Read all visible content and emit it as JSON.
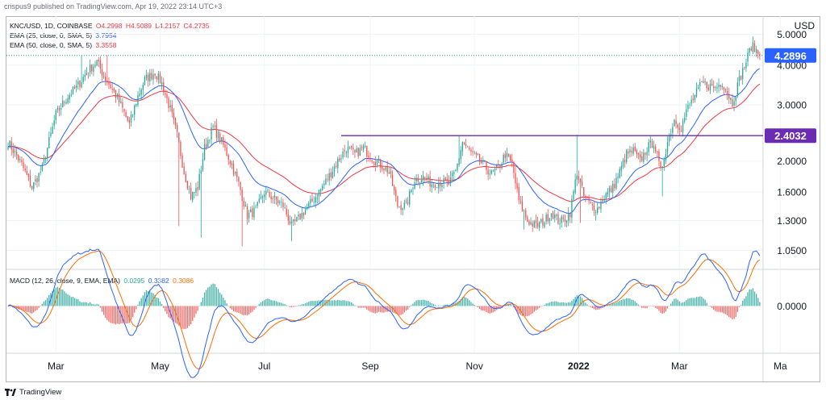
{
  "header": {
    "text": "crispus9 published on TradingView.com, Apr 19, 2022 23:14 UTC+3"
  },
  "legend": {
    "symbol_line": {
      "label": "KNC/USD, 1D, COINBASE",
      "open": "O4.2998",
      "high": "H4.5089",
      "low": "L4.2157",
      "close": "C4.2735"
    },
    "ema25": {
      "label": "EMA (25, close, 0, SMA, 5)",
      "value": "3.7954",
      "color": "#2962ff"
    },
    "ema50": {
      "label": "EMA (50, close, 0, SMA, 5)",
      "value": "3.3558",
      "color": "#f23645"
    },
    "macd": {
      "label": "MACD (12, 26, close, 9, EMA, EMA)",
      "hist": "0.0295",
      "macd": "0.3382",
      "signal": "0.3086",
      "hist_color": "#26a69a",
      "macd_color": "#2962ff",
      "signal_color": "#ff6d00"
    }
  },
  "footer": {
    "brand": "TradingView"
  },
  "colors": {
    "up": "#26a69a",
    "down": "#ef5350",
    "purple": "#6c2bb3",
    "current_label": "#2962ff",
    "level_label": "#6c2bb3"
  },
  "chart_data": {
    "type": "candlestick",
    "symbol": "KNC/USD",
    "interval": "1D",
    "exchange": "COINBASE",
    "y_axis": {
      "currency": "USD",
      "scale": "log",
      "ticks": [
        {
          "v": 5.0,
          "label": "5.0000"
        },
        {
          "v": 4.0,
          "label": "4.0000"
        },
        {
          "v": 3.0,
          "label": "3.0000"
        },
        {
          "v": 2.0,
          "label": "2.0000"
        },
        {
          "v": 1.6,
          "label": "1.6000"
        },
        {
          "v": 1.3,
          "label": "1.3000"
        },
        {
          "v": 1.05,
          "label": "1.0500"
        }
      ],
      "range": [
        0.92,
        5.7
      ]
    },
    "macd_axis": {
      "ticks": [
        {
          "v": 0.0,
          "label": "0.0000"
        }
      ],
      "range": [
        -0.58,
        0.44
      ]
    },
    "x_axis": {
      "ticks": [
        {
          "idx": 28,
          "label": "Mar"
        },
        {
          "idx": 89,
          "label": "May"
        },
        {
          "idx": 150,
          "label": "Jul"
        },
        {
          "idx": 212,
          "label": "Sep"
        },
        {
          "idx": 273,
          "label": "Nov"
        },
        {
          "idx": 334,
          "label": "2022",
          "bold": true
        },
        {
          "idx": 393,
          "label": "Mar"
        },
        {
          "idx": 452,
          "label": "Ma"
        }
      ]
    },
    "current_price": {
      "value": 4.2896,
      "label": "4.2896"
    },
    "horizontal_level": {
      "value": 2.4032,
      "label": "2.4032",
      "start_idx": 195
    },
    "anchors": [
      [
        0,
        2.3
      ],
      [
        8,
        1.95
      ],
      [
        14,
        1.65
      ],
      [
        20,
        1.9
      ],
      [
        28,
        2.8
      ],
      [
        35,
        3.2
      ],
      [
        40,
        3.4
      ],
      [
        46,
        3.8
      ],
      [
        52,
        4.1
      ],
      [
        56,
        3.7
      ],
      [
        62,
        3.3
      ],
      [
        66,
        3.0
      ],
      [
        71,
        2.6
      ],
      [
        76,
        3.2
      ],
      [
        80,
        3.6
      ],
      [
        86,
        3.8
      ],
      [
        90,
        3.5
      ],
      [
        95,
        2.9
      ],
      [
        99,
        2.4
      ],
      [
        103,
        1.85
      ],
      [
        107,
        1.55
      ],
      [
        111,
        1.65
      ],
      [
        115,
        2.2
      ],
      [
        120,
        2.55
      ],
      [
        125,
        2.3
      ],
      [
        130,
        2.0
      ],
      [
        135,
        1.7
      ],
      [
        140,
        1.35
      ],
      [
        145,
        1.4
      ],
      [
        150,
        1.6
      ],
      [
        156,
        1.52
      ],
      [
        161,
        1.45
      ],
      [
        166,
        1.25
      ],
      [
        170,
        1.32
      ],
      [
        176,
        1.45
      ],
      [
        182,
        1.6
      ],
      [
        188,
        1.8
      ],
      [
        193,
        2.0
      ],
      [
        198,
        2.2
      ],
      [
        203,
        2.1
      ],
      [
        208,
        2.2
      ],
      [
        213,
        2.05
      ],
      [
        218,
        1.95
      ],
      [
        223,
        1.85
      ],
      [
        228,
        1.45
      ],
      [
        233,
        1.45
      ],
      [
        238,
        1.75
      ],
      [
        243,
        1.78
      ],
      [
        248,
        1.7
      ],
      [
        253,
        1.72
      ],
      [
        258,
        1.7
      ],
      [
        262,
        1.85
      ],
      [
        266,
        2.3
      ],
      [
        270,
        2.15
      ],
      [
        274,
        2.05
      ],
      [
        278,
        1.95
      ],
      [
        283,
        1.82
      ],
      [
        287,
        1.9
      ],
      [
        291,
        2.1
      ],
      [
        295,
        1.95
      ],
      [
        299,
        1.5
      ],
      [
        304,
        1.3
      ],
      [
        309,
        1.25
      ],
      [
        314,
        1.3
      ],
      [
        318,
        1.38
      ],
      [
        322,
        1.3
      ],
      [
        325,
        1.3
      ],
      [
        329,
        1.38
      ],
      [
        333,
        1.85
      ],
      [
        337,
        1.55
      ],
      [
        341,
        1.45
      ],
      [
        345,
        1.42
      ],
      [
        349,
        1.55
      ],
      [
        354,
        1.65
      ],
      [
        358,
        1.85
      ],
      [
        362,
        2.1
      ],
      [
        366,
        2.15
      ],
      [
        370,
        2.0
      ],
      [
        374,
        2.2
      ],
      [
        378,
        2.3
      ],
      [
        382,
        1.85
      ],
      [
        386,
        2.3
      ],
      [
        390,
        2.7
      ],
      [
        394,
        2.55
      ],
      [
        398,
        2.95
      ],
      [
        402,
        3.2
      ],
      [
        406,
        3.5
      ],
      [
        410,
        3.45
      ],
      [
        414,
        3.4
      ],
      [
        418,
        3.55
      ],
      [
        422,
        3.2
      ],
      [
        424,
        3.05
      ],
      [
        428,
        3.6
      ],
      [
        432,
        4.1
      ],
      [
        435,
        4.6
      ],
      [
        438,
        4.45
      ],
      [
        440,
        4.27
      ]
    ],
    "spikes": [
      [
        43,
        4.3
      ],
      [
        58,
        4.3
      ],
      [
        100,
        1.25
      ],
      [
        113,
        1.15
      ],
      [
        137,
        1.08
      ],
      [
        166,
        1.12
      ],
      [
        264,
        2.4
      ],
      [
        302,
        1.22
      ],
      [
        327,
        1.25
      ],
      [
        333,
        2.42
      ],
      [
        335,
        1.28
      ],
      [
        344,
        1.3
      ],
      [
        383,
        1.55
      ],
      [
        436,
        4.8
      ]
    ],
    "ema25_last": 3.7954,
    "ema50_last": 3.3558,
    "macd_last": {
      "macd": 0.3382,
      "signal": 0.3086,
      "hist": 0.0295
    }
  }
}
